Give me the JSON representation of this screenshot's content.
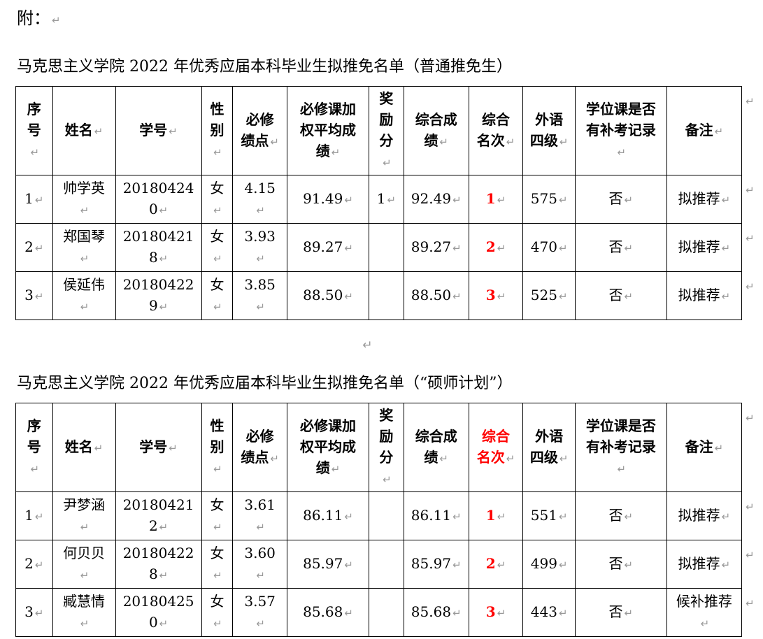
{
  "page": {
    "attachment_label": "附：",
    "paragraph_mark": "↵",
    "separator_mark": "↵"
  },
  "colors": {
    "text": "#000000",
    "rank_red": "#ff0000",
    "mark_gray": "#999999",
    "border": "#000000",
    "background": "#ffffff"
  },
  "tables": [
    {
      "title": "马克思主义学院 2022 年优秀应届本科毕业生拟推免名单（普通推免生）",
      "headers": [
        "序号",
        "姓名",
        "学号",
        "性别",
        "必修绩点",
        "必修课加权平均成绩",
        "奖励分",
        "综合成绩",
        "综合名次",
        "外语四级",
        "学位课是否有补考记录",
        "备注"
      ],
      "red_header_columns": [],
      "red_value_columns": [
        8
      ],
      "rows": [
        [
          "1",
          "帅学英",
          "201804240",
          "女",
          "4.15",
          "91.49",
          "1",
          "92.49",
          "1",
          "575",
          "否",
          "拟推荐"
        ],
        [
          "2",
          "郑国琴",
          "201804218",
          "女",
          "3.93",
          "89.27",
          "",
          "89.27",
          "2",
          "470",
          "否",
          "拟推荐"
        ],
        [
          "3",
          "侯延伟",
          "201804229",
          "女",
          "3.85",
          "88.50",
          "",
          "88.50",
          "3",
          "525",
          "否",
          "拟推荐"
        ]
      ]
    },
    {
      "title": "马克思主义学院 2022 年优秀应届本科毕业生拟推免名单（“硕师计划”）",
      "headers": [
        "序号",
        "姓名",
        "学号",
        "性别",
        "必修绩点",
        "必修课加权平均成绩",
        "奖励分",
        "综合成绩",
        "综合名次",
        "外语四级",
        "学位课是否有补考记录",
        "备注"
      ],
      "red_header_columns": [
        8
      ],
      "red_value_columns": [
        8
      ],
      "rows": [
        [
          "1",
          "尹梦涵",
          "201804212",
          "女",
          "3.61",
          "86.11",
          "",
          "86.11",
          "1",
          "551",
          "否",
          "拟推荐"
        ],
        [
          "2",
          "何贝贝",
          "201804228",
          "女",
          "3.60",
          "85.97",
          "",
          "85.97",
          "2",
          "499",
          "否",
          "拟推荐"
        ],
        [
          "3",
          "臧慧情",
          "201804250",
          "女",
          "3.57",
          "85.68",
          "",
          "85.68",
          "3",
          "443",
          "否",
          "候补推荐"
        ]
      ]
    }
  ]
}
